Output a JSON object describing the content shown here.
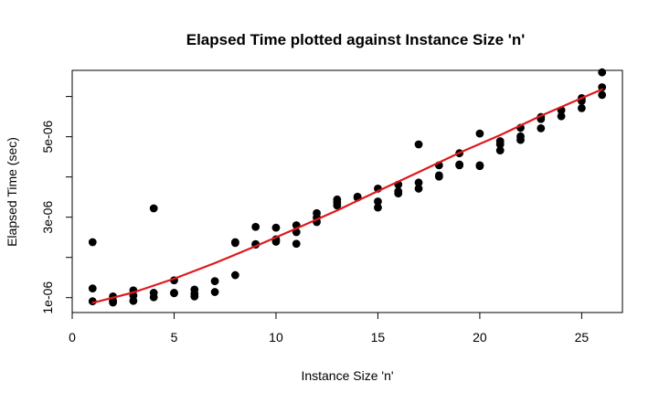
{
  "chart_data": {
    "type": "scatter",
    "title": "Elapsed Time plotted against Instance Size 'n'",
    "xlabel": "Instance Size 'n'",
    "ylabel": "Elapsed Time (sec)",
    "xlim": [
      0,
      27
    ],
    "ylim": [
      6.3e-07,
      6.65e-06
    ],
    "x_ticks": [
      0,
      5,
      10,
      15,
      20,
      25
    ],
    "x_tick_labels": [
      "0",
      "5",
      "10",
      "15",
      "20",
      "25"
    ],
    "y_ticks": [
      1e-06,
      2e-06,
      3e-06,
      4e-06,
      5e-06,
      6e-06
    ],
    "y_tick_labels": [
      "1e-06",
      "",
      "3e-06",
      "",
      "5e-06",
      ""
    ],
    "grid": false,
    "point_color": "#000000",
    "fit_color": "#e0181b",
    "points": [
      [
        1,
        2.38e-06
      ],
      [
        1,
        1.23e-06
      ],
      [
        1,
        9.1e-07
      ],
      [
        2,
        1.03e-06
      ],
      [
        2,
        9.2e-07
      ],
      [
        2,
        8.8e-07
      ],
      [
        3,
        1.18e-06
      ],
      [
        3,
        1.05e-06
      ],
      [
        3,
        9.2e-07
      ],
      [
        4,
        3.22e-06
      ],
      [
        4,
        1.12e-06
      ],
      [
        4,
        1.01e-06
      ],
      [
        5,
        1.43e-06
      ],
      [
        5,
        1.12e-06
      ],
      [
        5,
        1.11e-06
      ],
      [
        6,
        1.2e-06
      ],
      [
        6,
        1.1e-06
      ],
      [
        6,
        1.03e-06
      ],
      [
        7,
        1.41e-06
      ],
      [
        7,
        1.14e-06
      ],
      [
        8,
        2.38e-06
      ],
      [
        8,
        2.36e-06
      ],
      [
        8,
        1.56e-06
      ],
      [
        9,
        2.76e-06
      ],
      [
        9,
        2.33e-06
      ],
      [
        9,
        2.32e-06
      ],
      [
        10,
        2.74e-06
      ],
      [
        10,
        2.45e-06
      ],
      [
        10,
        2.39e-06
      ],
      [
        11,
        2.8e-06
      ],
      [
        11,
        2.63e-06
      ],
      [
        11,
        2.34e-06
      ],
      [
        12,
        3.1e-06
      ],
      [
        12,
        2.99e-06
      ],
      [
        12,
        2.88e-06
      ],
      [
        13,
        3.44e-06
      ],
      [
        13,
        3.37e-06
      ],
      [
        13,
        3.29e-06
      ],
      [
        14,
        3.51e-06
      ],
      [
        14,
        3.49e-06
      ],
      [
        15,
        3.71e-06
      ],
      [
        15,
        3.39e-06
      ],
      [
        15,
        3.24e-06
      ],
      [
        16,
        3.81e-06
      ],
      [
        16,
        3.64e-06
      ],
      [
        16,
        3.59e-06
      ],
      [
        17,
        4.81e-06
      ],
      [
        17,
        3.86e-06
      ],
      [
        17,
        3.71e-06
      ],
      [
        18,
        4.29e-06
      ],
      [
        18,
        4.04e-06
      ],
      [
        18,
        4.01e-06
      ],
      [
        19,
        4.59e-06
      ],
      [
        19,
        4.31e-06
      ],
      [
        19,
        4.29e-06
      ],
      [
        20,
        5.08e-06
      ],
      [
        20,
        4.29e-06
      ],
      [
        20,
        4.27e-06
      ],
      [
        21,
        4.89e-06
      ],
      [
        21,
        4.81e-06
      ],
      [
        21,
        4.66e-06
      ],
      [
        22,
        5.22e-06
      ],
      [
        22,
        5.01e-06
      ],
      [
        22,
        4.92e-06
      ],
      [
        23,
        5.49e-06
      ],
      [
        23,
        5.44e-06
      ],
      [
        23,
        5.21e-06
      ],
      [
        24,
        5.66e-06
      ],
      [
        24,
        5.51e-06
      ],
      [
        25,
        5.96e-06
      ],
      [
        25,
        5.89e-06
      ],
      [
        25,
        5.71e-06
      ],
      [
        26,
        6.6e-06
      ],
      [
        26,
        6.23e-06
      ],
      [
        26,
        6.04e-06
      ]
    ],
    "fit_curve": {
      "x": [
        1,
        3,
        5,
        7,
        9,
        11,
        13,
        15,
        17,
        19,
        21,
        23,
        25,
        26
      ],
      "y": [
        8.7e-07,
        1.13e-06,
        1.47e-06,
        1.86e-06,
        2.28e-06,
        2.72e-06,
        3.17e-06,
        3.65e-06,
        4.12e-06,
        4.6e-06,
        5.04e-06,
        5.52e-06,
        5.96e-06,
        6.18e-06
      ]
    }
  }
}
